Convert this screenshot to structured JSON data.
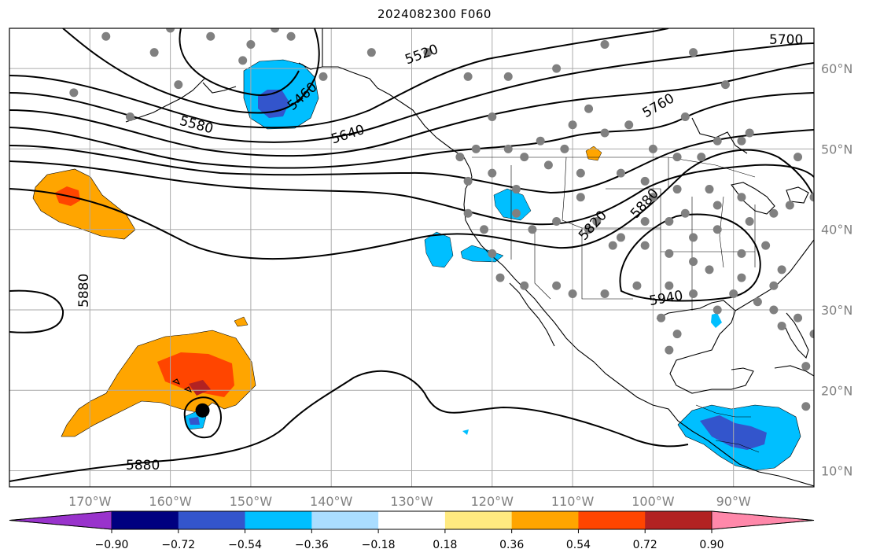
{
  "title": "2024082300 F060",
  "map": {
    "projection": "plate-carree",
    "lon_range": [
      -180,
      -80
    ],
    "lat_range": [
      8,
      65
    ],
    "grid": true,
    "lon_ticks": [
      "170°W",
      "160°W",
      "150°W",
      "140°W",
      "130°W",
      "120°W",
      "110°W",
      "100°W",
      "90°W"
    ],
    "lat_ticks": [
      "60°N",
      "50°N",
      "40°N",
      "30°N",
      "20°N",
      "10°N"
    ],
    "contour_labels": [
      "5460",
      "5520",
      "5580",
      "5640",
      "5700",
      "5760",
      "5820",
      "5880",
      "5880",
      "5880",
      "5940"
    ],
    "marker": {
      "lon": -156,
      "lat": 17.5,
      "color": "#000000"
    },
    "station_color": "#808080"
  },
  "colorbar": {
    "labels": [
      "−0.90",
      "−0.72",
      "−0.54",
      "−0.36",
      "−0.18",
      "0.18",
      "0.36",
      "0.54",
      "0.72",
      "0.90"
    ],
    "colors": [
      "#9933cc",
      "#000080",
      "#3355cc",
      "#00bfff",
      "#aaddff",
      "#ffffff",
      "#ffea80",
      "#ffa500",
      "#ff4500",
      "#b22222",
      "#ff88aa"
    ]
  },
  "shading_colors": {
    "strong_neg": "#3355cc",
    "mid_neg": "#00bfff",
    "mid_pos": "#ffa500",
    "strong_pos": "#ff4500",
    "very_pos": "#b22222"
  }
}
